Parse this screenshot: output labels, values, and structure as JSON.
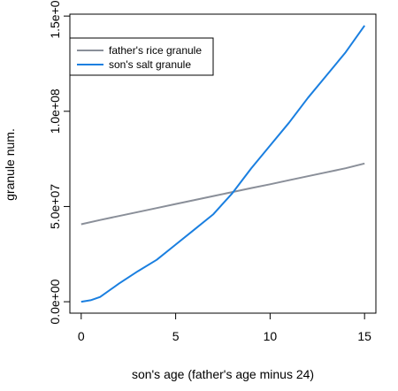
{
  "chart_data": {
    "type": "line",
    "title": "",
    "xlabel": "son's age (father's age minus 24)",
    "ylabel": "granule num.",
    "xlim": [
      -0.6,
      15.6
    ],
    "ylim": [
      -6000000,
      151000000
    ],
    "x_ticks": [
      0,
      5,
      10,
      15
    ],
    "x_tick_labels": [
      "0",
      "5",
      "10",
      "15"
    ],
    "y_ticks": [
      0,
      50000000,
      100000000,
      150000000
    ],
    "y_tick_labels": [
      "0.0e+00",
      "5.0e+07",
      "1.0e+08",
      "1.5e+08"
    ],
    "grid": false,
    "legend_position": "top-left",
    "series": [
      {
        "name": "father's rice granule",
        "color": "#8a8f99",
        "x": [
          0,
          1,
          2,
          3,
          4,
          5,
          6,
          7,
          8,
          9,
          10,
          11,
          12,
          13,
          14,
          15
        ],
        "y": [
          40700000,
          42900000,
          45000000,
          47100000,
          49200000,
          51300000,
          53400000,
          55500000,
          57600000,
          59700000,
          61700000,
          63800000,
          65900000,
          68000000,
          70100000,
          72600000
        ]
      },
      {
        "name": "son's salt granule",
        "color": "#1a7fe0",
        "x": [
          0,
          0.5,
          1,
          2,
          3,
          4,
          5,
          6,
          7,
          8,
          9,
          10,
          11,
          12,
          13,
          14,
          15
        ],
        "y": [
          0,
          800000,
          2500000,
          9500000,
          16000000,
          22000000,
          30000000,
          38000000,
          46000000,
          57000000,
          70000000,
          82000000,
          94000000,
          107000000,
          119000000,
          131000000,
          145000000
        ]
      }
    ]
  }
}
